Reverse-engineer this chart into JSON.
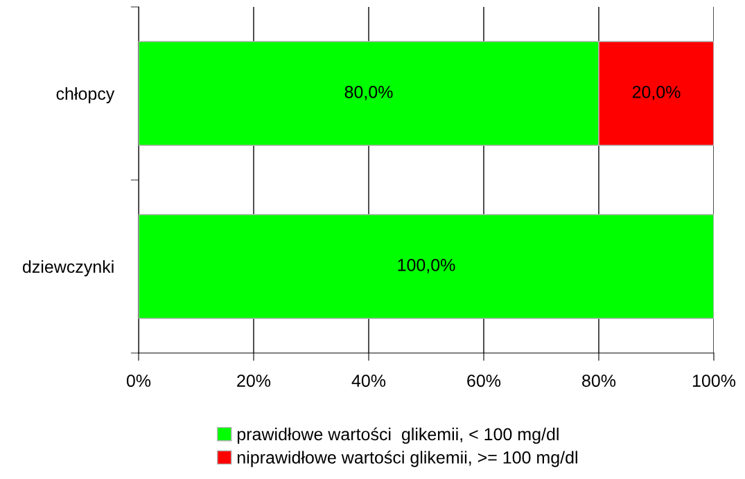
{
  "chart_data": {
    "type": "bar",
    "orientation": "horizontal",
    "stacked": true,
    "categories": [
      "chłopcy",
      "dziewczynki"
    ],
    "series": [
      {
        "name": "prawidłowe wartości  glikemii, < 100 mg/dl",
        "color": "#00ff00",
        "values": [
          80,
          100
        ],
        "value_labels": [
          "80,0%",
          "100,0%"
        ]
      },
      {
        "name": "niprawidłowe wartości glikemii, >= 100 mg/dl",
        "color": "#ff0000",
        "values": [
          20,
          null
        ],
        "value_labels": [
          "20,0%",
          null
        ]
      }
    ],
    "xlim": [
      0,
      100
    ],
    "xticks": [
      {
        "value": 0,
        "label": "0%"
      },
      {
        "value": 20,
        "label": "20%"
      },
      {
        "value": 40,
        "label": "40%"
      },
      {
        "value": 60,
        "label": "60%"
      },
      {
        "value": 80,
        "label": "80%"
      },
      {
        "value": 100,
        "label": "100%"
      }
    ],
    "grid": "x",
    "legend": "bottom"
  }
}
